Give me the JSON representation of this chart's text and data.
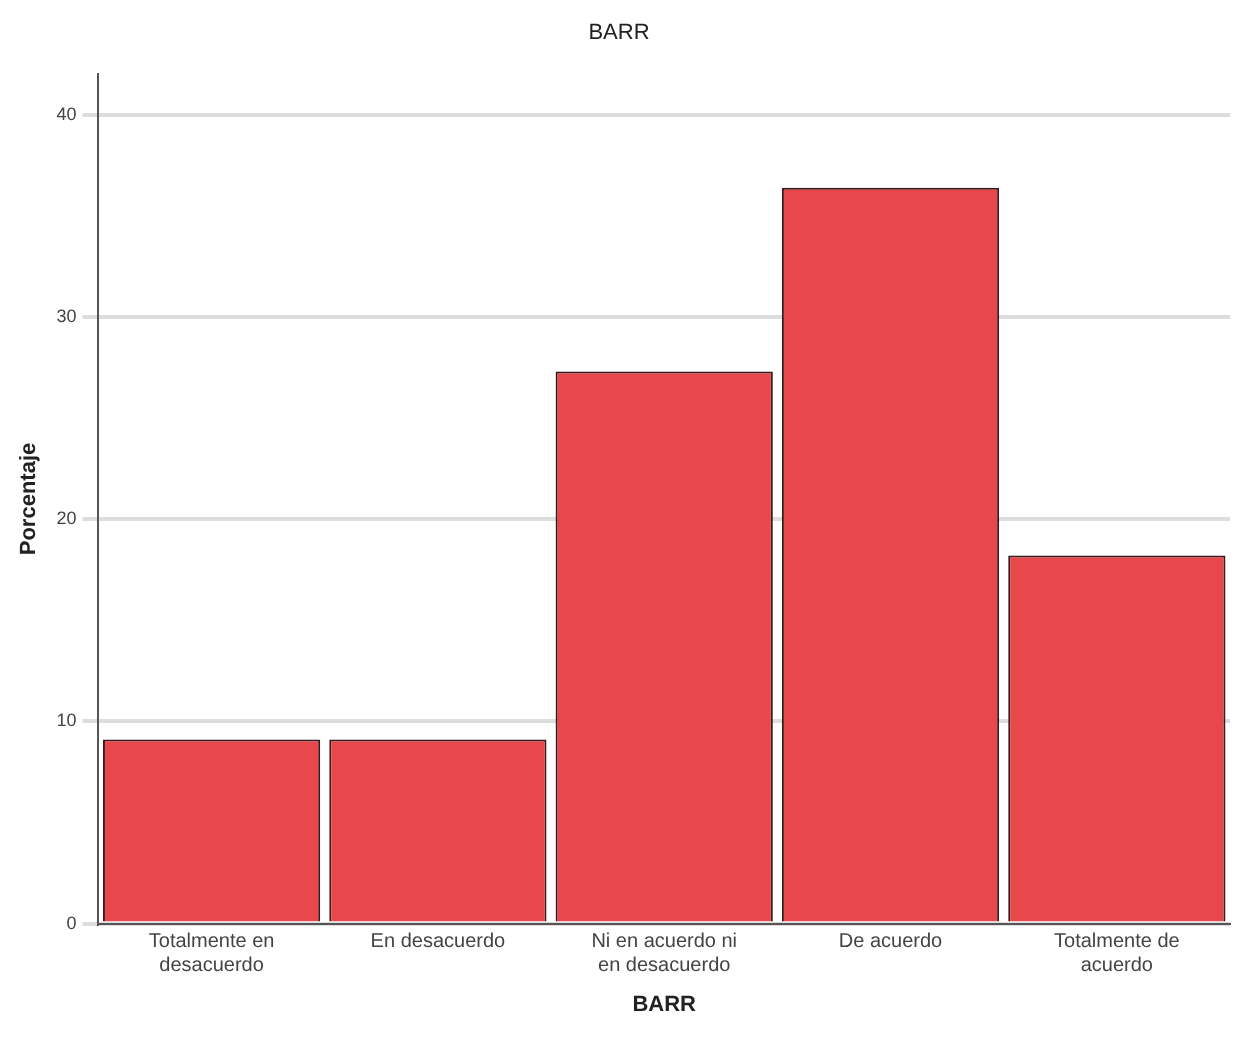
{
  "chart_data": {
    "type": "bar",
    "title": "BARR",
    "xlabel": "BARR",
    "ylabel": "Porcentaje",
    "categories": [
      "Totalmente en desacuerdo",
      "En desacuerdo",
      "Ni en acuerdo ni en desacuerdo",
      "De acuerdo",
      "Totalmente de acuerdo"
    ],
    "values": [
      9.1,
      9.1,
      27.3,
      36.4,
      18.2
    ],
    "color": "#e8474b",
    "ylim": [
      0,
      42
    ],
    "yticks": [
      0,
      10,
      20,
      30,
      40
    ],
    "grid": "y",
    "legend": false
  }
}
